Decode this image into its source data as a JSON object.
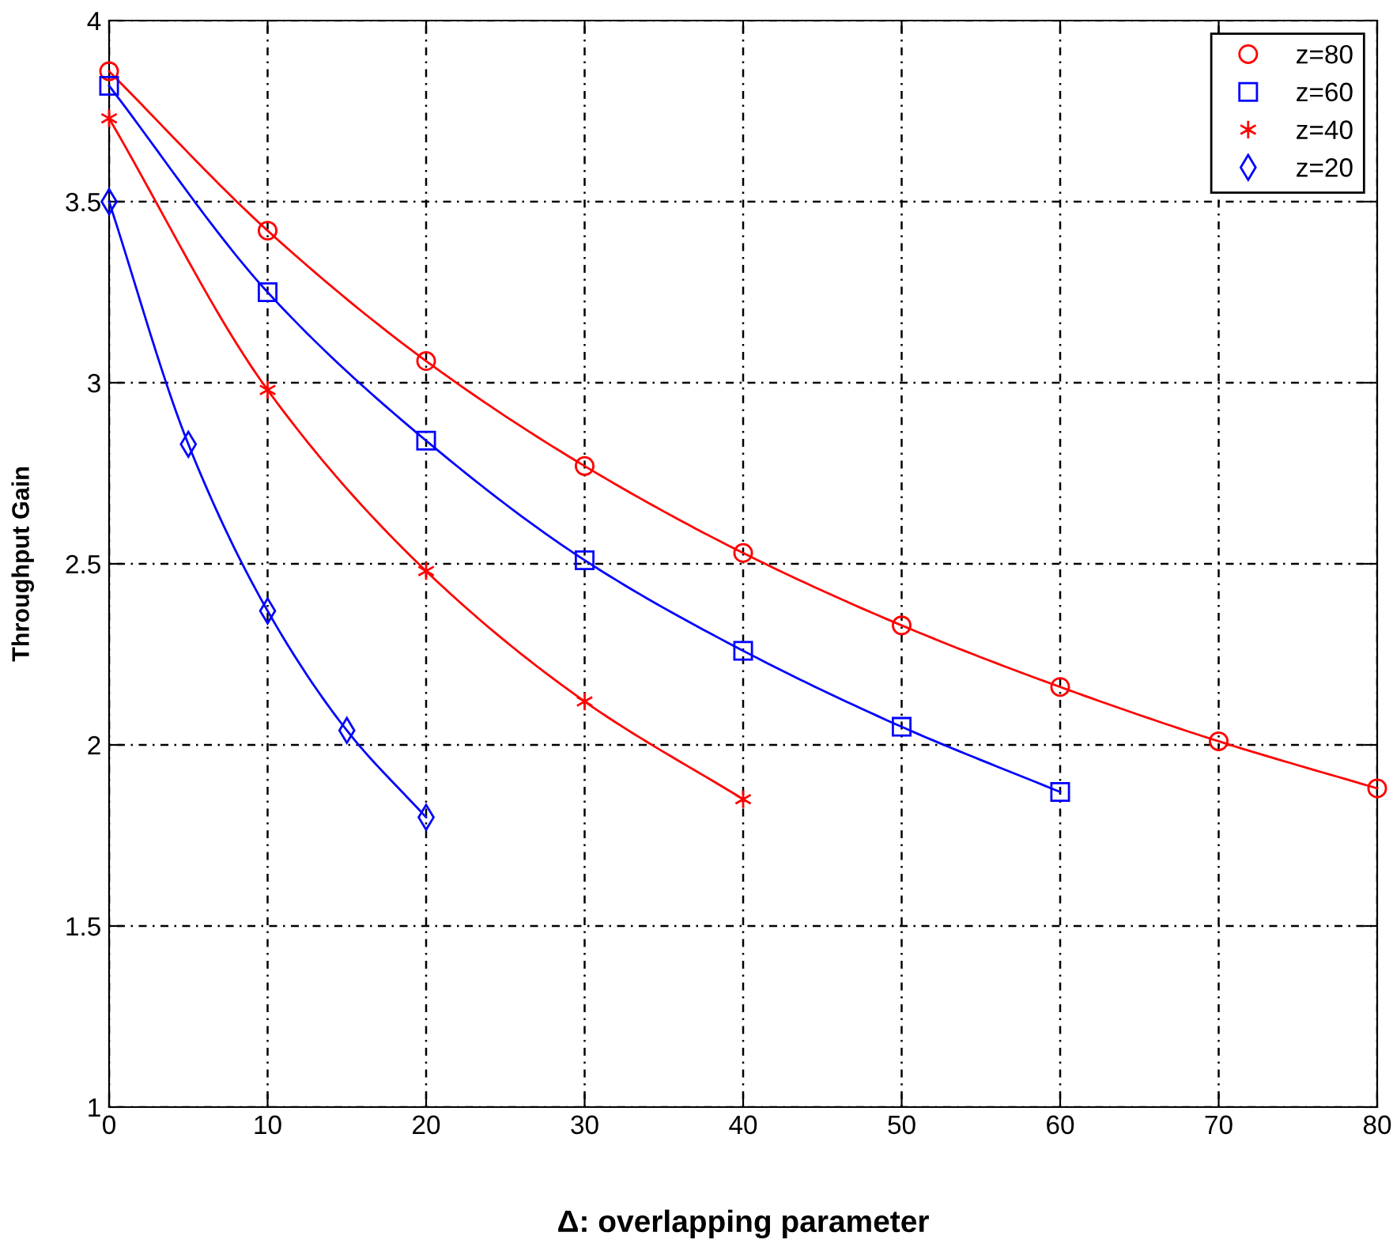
{
  "chart_data": {
    "type": "line",
    "xlabel": "Δ: overlapping parameter",
    "ylabel": "Throughput Gain",
    "xlim": [
      0,
      80
    ],
    "ylim": [
      1,
      4
    ],
    "xticks": [
      0,
      10,
      20,
      30,
      40,
      50,
      60,
      70,
      80
    ],
    "yticks": [
      1,
      1.5,
      2,
      2.5,
      3,
      3.5,
      4
    ],
    "grid": true,
    "legend": "top right",
    "line_style": "solid",
    "series": [
      {
        "name": "z=80",
        "color": "#ff0000",
        "marker": "circle",
        "x": [
          0,
          10,
          20,
          30,
          40,
          50,
          60,
          70,
          80
        ],
        "values": [
          3.86,
          3.42,
          3.06,
          2.77,
          2.53,
          2.33,
          2.16,
          2.01,
          1.88
        ]
      },
      {
        "name": "z=60",
        "color": "#0000ff",
        "marker": "square",
        "x": [
          0,
          10,
          20,
          30,
          40,
          50,
          60
        ],
        "values": [
          3.82,
          3.25,
          2.84,
          2.51,
          2.26,
          2.05,
          1.87
        ]
      },
      {
        "name": "z=40",
        "color": "#ff0000",
        "marker": "cross",
        "x": [
          0,
          10,
          20,
          30,
          40
        ],
        "values": [
          3.73,
          2.98,
          2.48,
          2.12,
          1.85
        ]
      },
      {
        "name": "z=20",
        "color": "#0000ff",
        "marker": "diamond",
        "x": [
          0,
          5,
          10,
          15,
          20
        ],
        "values": [
          3.5,
          2.83,
          2.37,
          2.04,
          1.8
        ]
      }
    ]
  }
}
